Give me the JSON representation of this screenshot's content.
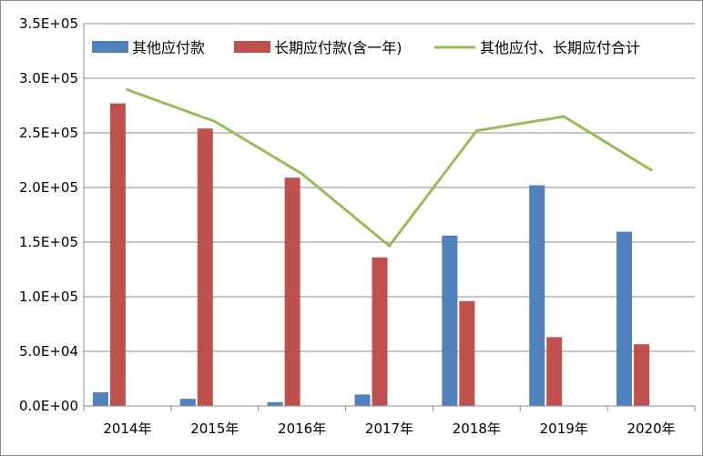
{
  "chart_data": {
    "type": "bar",
    "categories": [
      "2014年",
      "2015年",
      "2016年",
      "2017年",
      "2018年",
      "2019年",
      "2020年"
    ],
    "series": [
      {
        "name": "其他应付款",
        "type": "bar",
        "color": "#4f81bd",
        "values": [
          12500,
          6500,
          3500,
          10500,
          156000,
          202000,
          159500
        ]
      },
      {
        "name": "长期应付款(含一年)",
        "type": "bar",
        "color": "#c0504d",
        "values": [
          277000,
          254000,
          209000,
          136000,
          96000,
          63000,
          56500
        ]
      },
      {
        "name": "其他应付、长期应付合计",
        "type": "line",
        "color": "#9bbb59",
        "values": [
          289500,
          260500,
          212500,
          146500,
          252000,
          265000,
          216000
        ]
      }
    ],
    "ylim": [
      0,
      350000
    ],
    "yticks": [
      0,
      50000,
      100000,
      150000,
      200000,
      250000,
      300000,
      350000
    ],
    "ytick_labels": [
      "0.0E+00",
      "5.0E+04",
      "1.0E+05",
      "1.5E+05",
      "2.0E+05",
      "2.5E+05",
      "3.0E+05",
      "3.5E+05"
    ],
    "grid": true,
    "legend_position": "top"
  }
}
